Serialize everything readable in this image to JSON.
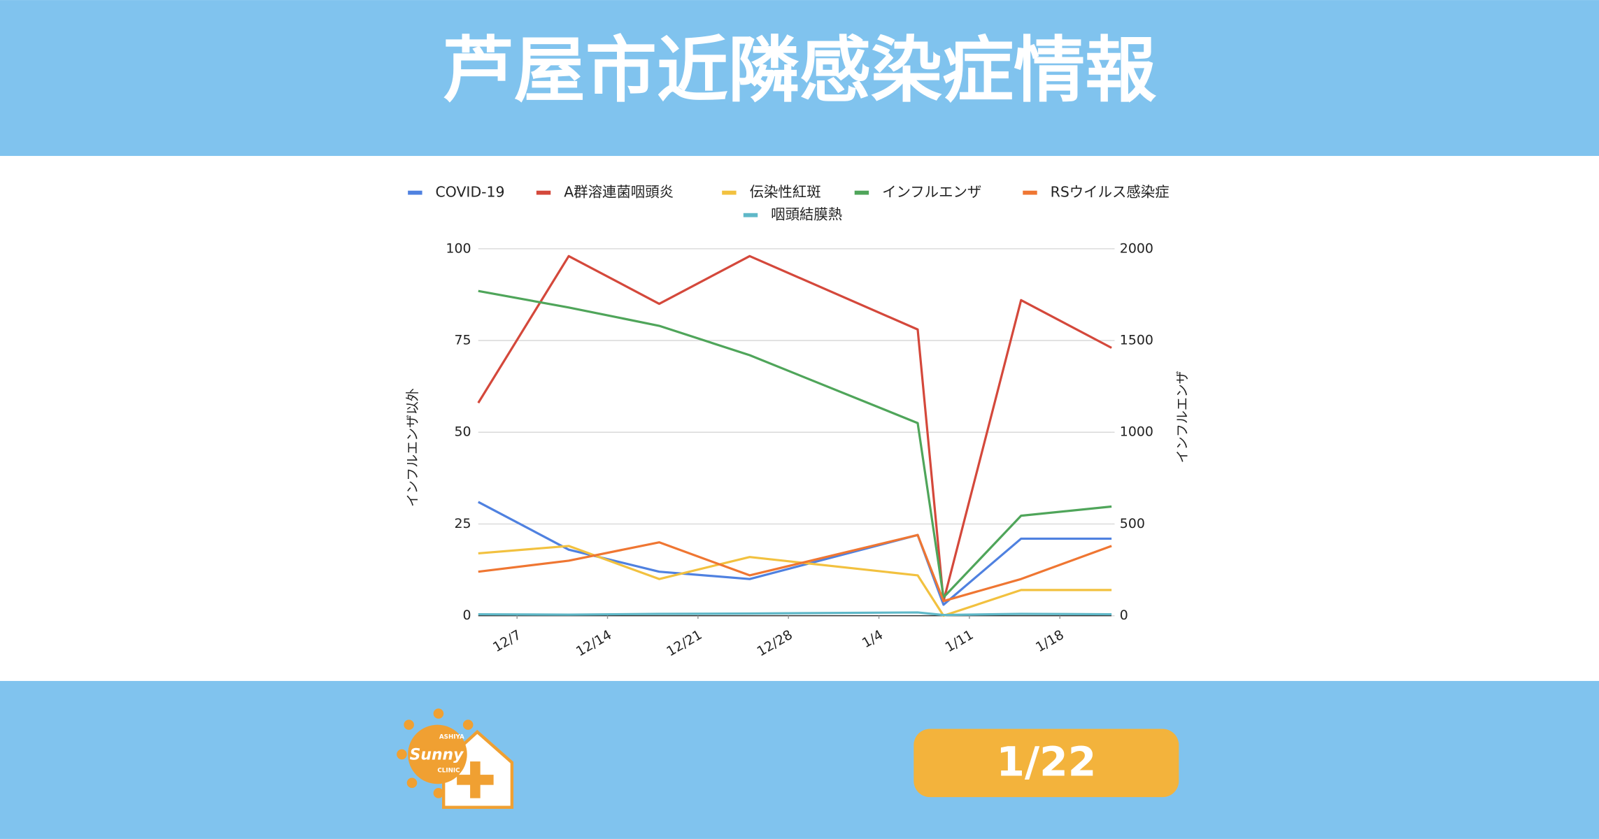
{
  "header": {
    "title": "芦屋市近隣感染症情報"
  },
  "chart_data": {
    "type": "line",
    "x": [
      "12/4",
      "12/11",
      "12/18",
      "12/25",
      "1/7",
      "1/9",
      "1/15",
      "1/22"
    ],
    "xlim": [
      "12/4",
      "1/22"
    ],
    "xticks": [
      "12/7",
      "12/14",
      "12/21",
      "12/28",
      "1/4",
      "1/11",
      "1/18"
    ],
    "ylabel": "インフルエンザ以外",
    "y2label": "インフルエンザ",
    "ylim": [
      0,
      100
    ],
    "yticks": [
      0,
      25,
      50,
      75,
      100
    ],
    "y2lim": [
      0,
      2000
    ],
    "y2ticks": [
      0,
      500,
      1000,
      1500,
      2000
    ],
    "grid": true,
    "legend": "top",
    "series": [
      {
        "name": "COVID-19",
        "color": "#4f81e0",
        "values": [
          31,
          18,
          12,
          10,
          22,
          3,
          21,
          21
        ]
      },
      {
        "name": "A群溶連菌咽頭炎",
        "color": "#d4483b",
        "values": [
          58,
          98,
          85,
          98,
          78,
          4,
          86,
          73
        ]
      },
      {
        "name": "伝染性紅斑",
        "color": "#f2c13f",
        "values": [
          17,
          19,
          10,
          16,
          11,
          0,
          7,
          7
        ]
      },
      {
        "name": "インフルエンザ",
        "color": "#4fa55a",
        "axis": "y2",
        "values": [
          1770,
          1680,
          1580,
          1420,
          1050,
          100,
          545,
          595
        ]
      },
      {
        "name": "RSウイルス感染症",
        "color": "#ef7632",
        "values": [
          12,
          15,
          20,
          11,
          22,
          4,
          10,
          19
        ]
      },
      {
        "name": "咽頭結膜熱",
        "color": "#5fb8c8",
        "values": [
          0.4,
          0.3,
          0.5,
          0.6,
          0.9,
          0.2,
          0.5,
          0.4
        ]
      }
    ]
  },
  "footer": {
    "logo": {
      "name": "Sunny",
      "top": "ASHIYA",
      "bottom": "CLINIC"
    },
    "date": "1/22"
  }
}
